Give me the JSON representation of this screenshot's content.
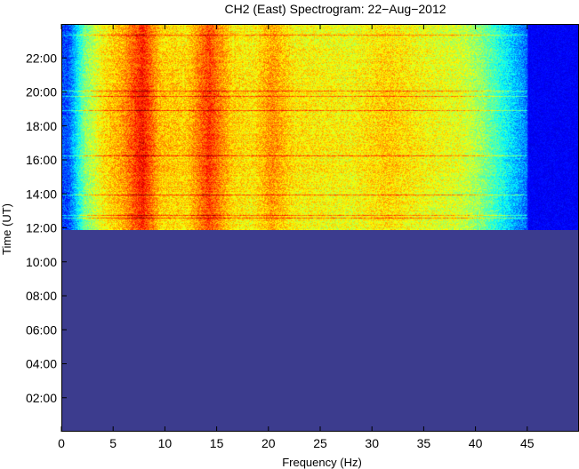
{
  "chart_data": {
    "type": "heatmap",
    "title": "CH2 (East) Spectrogram: 22−Aug−2012",
    "xlabel": "Frequency (Hz)",
    "ylabel": "Time (UT)",
    "xlim": [
      0,
      50
    ],
    "ylim_hours": [
      0,
      24
    ],
    "x_ticks": [
      {
        "value": 0,
        "label": "0"
      },
      {
        "value": 5,
        "label": "5"
      },
      {
        "value": 10,
        "label": "10"
      },
      {
        "value": 15,
        "label": "15"
      },
      {
        "value": 20,
        "label": "20"
      },
      {
        "value": 25,
        "label": "25"
      },
      {
        "value": 30,
        "label": "30"
      },
      {
        "value": 35,
        "label": "35"
      },
      {
        "value": 40,
        "label": "40"
      },
      {
        "value": 45,
        "label": "45"
      }
    ],
    "y_ticks": [
      {
        "value": 2,
        "label": "02:00"
      },
      {
        "value": 4,
        "label": "04:00"
      },
      {
        "value": 6,
        "label": "06:00"
      },
      {
        "value": 8,
        "label": "08:00"
      },
      {
        "value": 10,
        "label": "10:00"
      },
      {
        "value": 12,
        "label": "12:00"
      },
      {
        "value": 14,
        "label": "14:00"
      },
      {
        "value": 16,
        "label": "16:00"
      },
      {
        "value": 18,
        "label": "18:00"
      },
      {
        "value": 20,
        "label": "20:00"
      },
      {
        "value": 22,
        "label": "22:00"
      }
    ],
    "data_start_hour": 11.85,
    "data_end_hour": 24,
    "empty_region_color": "#3c3c8e",
    "high_frequency_cutoff_hz": 45,
    "colormap": "jet",
    "frequency_profile_intensity": [
      {
        "f": 0,
        "v": 0.18
      },
      {
        "f": 0.6,
        "v": 0.18
      },
      {
        "f": 1.2,
        "v": 0.28
      },
      {
        "f": 2.2,
        "v": 0.48
      },
      {
        "f": 4,
        "v": 0.62
      },
      {
        "f": 6,
        "v": 0.7
      },
      {
        "f": 7.8,
        "v": 0.84
      },
      {
        "f": 9.5,
        "v": 0.66
      },
      {
        "f": 12,
        "v": 0.64
      },
      {
        "f": 14.2,
        "v": 0.8
      },
      {
        "f": 16.5,
        "v": 0.64
      },
      {
        "f": 18.5,
        "v": 0.62
      },
      {
        "f": 20.3,
        "v": 0.71
      },
      {
        "f": 22.5,
        "v": 0.62
      },
      {
        "f": 28,
        "v": 0.6
      },
      {
        "f": 31.5,
        "v": 0.65
      },
      {
        "f": 35,
        "v": 0.6
      },
      {
        "f": 38.5,
        "v": 0.57
      },
      {
        "f": 40.5,
        "v": 0.5
      },
      {
        "f": 42.5,
        "v": 0.38
      },
      {
        "f": 44,
        "v": 0.28
      },
      {
        "f": 44.9,
        "v": 0.22
      },
      {
        "f": 45.1,
        "v": 0.12
      },
      {
        "f": 50,
        "v": 0.12
      }
    ],
    "horizontal_bands_hours": [
      12.6,
      12.75,
      13.95,
      16.25,
      18.95,
      19.75,
      20.1,
      23.35
    ]
  }
}
